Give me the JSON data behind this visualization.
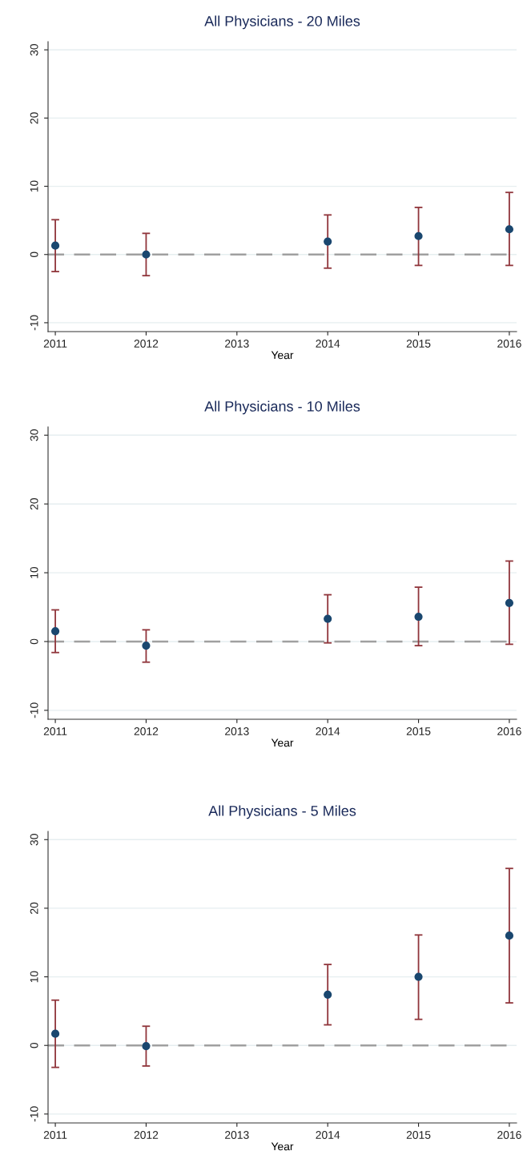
{
  "chart_data": [
    {
      "type": "scatter",
      "title": "All Physicians - 20 Miles",
      "xlabel": "Year",
      "x": [
        2011,
        2012,
        2014,
        2015,
        2016
      ],
      "xlim": [
        2010.92,
        2016.08
      ],
      "xticks": [
        2011,
        2012,
        2013,
        2014,
        2015,
        2016
      ],
      "ylim": [
        -11.3,
        31.2
      ],
      "yticks": [
        -10,
        0,
        10,
        20,
        30
      ],
      "grid": "y",
      "marker": "circle",
      "series": [
        {
          "color": "#1a476f",
          "values": [
            1.3,
            0,
            1.9,
            2.7,
            3.7
          ],
          "errors": [
            [
              -2.5,
              5.1
            ],
            [
              -3.1,
              3.1
            ],
            [
              -2.0,
              5.8
            ],
            [
              -1.6,
              6.9
            ],
            [
              -1.6,
              9.1
            ]
          ]
        }
      ],
      "ref_lines": [
        {
          "axis": "y",
          "value": 0,
          "color": "#a0a0a0",
          "line_style": "dashed"
        }
      ]
    },
    {
      "type": "scatter",
      "title": "All Physicians - 10 Miles",
      "xlabel": "Year",
      "x": [
        2011,
        2012,
        2014,
        2015,
        2016
      ],
      "xlim": [
        2010.92,
        2016.08
      ],
      "xticks": [
        2011,
        2012,
        2013,
        2014,
        2015,
        2016
      ],
      "ylim": [
        -11.3,
        31.2
      ],
      "yticks": [
        -10,
        0,
        10,
        20,
        30
      ],
      "grid": "y",
      "marker": "circle",
      "series": [
        {
          "color": "#1a476f",
          "values": [
            1.5,
            -0.6,
            3.3,
            3.6,
            5.6
          ],
          "errors": [
            [
              -1.6,
              4.6
            ],
            [
              -3.0,
              1.7
            ],
            [
              -0.2,
              6.8
            ],
            [
              -0.6,
              7.9
            ],
            [
              -0.4,
              11.7
            ]
          ]
        }
      ],
      "ref_lines": [
        {
          "axis": "y",
          "value": 0,
          "color": "#a0a0a0",
          "line_style": "dashed"
        }
      ]
    },
    {
      "type": "scatter",
      "title": "All Physicians - 5 Miles",
      "xlabel": "Year",
      "x": [
        2011,
        2012,
        2014,
        2015,
        2016
      ],
      "xlim": [
        2010.92,
        2016.08
      ],
      "xticks": [
        2011,
        2012,
        2013,
        2014,
        2015,
        2016
      ],
      "ylim": [
        -11.3,
        31.2
      ],
      "yticks": [
        -10,
        0,
        10,
        20,
        30
      ],
      "grid": "y",
      "marker": "circle",
      "series": [
        {
          "color": "#1a476f",
          "values": [
            1.7,
            -0.1,
            7.4,
            10.0,
            16.0
          ],
          "errors": [
            [
              -3.2,
              6.6
            ],
            [
              -3.0,
              2.8
            ],
            [
              3.0,
              11.8
            ],
            [
              3.8,
              16.1
            ],
            [
              6.2,
              25.8
            ]
          ]
        }
      ],
      "ref_lines": [
        {
          "axis": "y",
          "value": 0,
          "color": "#a0a0a0",
          "line_style": "dashed"
        }
      ]
    }
  ]
}
